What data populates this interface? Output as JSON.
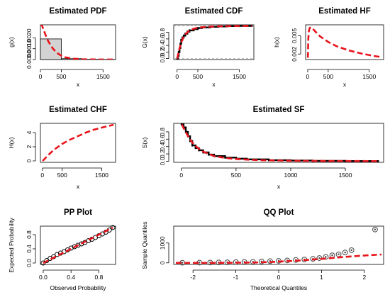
{
  "chart_data": [
    {
      "id": "pdf",
      "type": "bar",
      "title": "Estimated PDF",
      "xlabel": "x",
      "ylabel": "g(x)",
      "xlim": [
        0,
        1800
      ],
      "ylim": [
        0,
        0.0032
      ],
      "xticks": [
        "0",
        "500",
        "1500"
      ],
      "yticks": [
        "0.0000",
        "0.0010",
        "0.0020"
      ],
      "histogram": [
        {
          "x0": 0,
          "x1": 500,
          "value": 0.0019
        },
        {
          "x0": 500,
          "x1": 1000,
          "value": 8e-05
        },
        {
          "x0": 1000,
          "x1": 1500,
          "value": 2e-05
        },
        {
          "x0": 1500,
          "x1": 1800,
          "value": 1e-05
        }
      ],
      "fitted_curve": {
        "x": [
          5,
          20,
          40,
          60,
          80,
          100,
          150,
          200,
          300,
          400,
          500,
          600,
          800,
          1000,
          1200,
          1500,
          1800
        ],
        "y": [
          0.0031,
          0.0032,
          0.0031,
          0.0029,
          0.0027,
          0.0025,
          0.002,
          0.0016,
          0.001,
          0.0006,
          0.00035,
          0.0002,
          8e-05,
          3e-05,
          1e-05,
          4e-06,
          1e-06
        ]
      }
    },
    {
      "id": "cdf",
      "type": "line",
      "title": "Estimated CDF",
      "xlabel": "x",
      "ylabel": "G(x)",
      "xlim": [
        -80,
        1850
      ],
      "ylim": [
        -0.03,
        1.03
      ],
      "xticks": [
        "0",
        "500",
        "1500"
      ],
      "yticks": [
        "0.0",
        "0.2",
        "0.4",
        "0.6",
        "0.8"
      ],
      "empirical": {
        "x": [
          0,
          20,
          40,
          60,
          80,
          100,
          130,
          160,
          200,
          250,
          300,
          400,
          500,
          600,
          800,
          1000,
          1200,
          1500,
          1800
        ],
        "y": [
          0.0,
          0.08,
          0.2,
          0.32,
          0.45,
          0.57,
          0.64,
          0.7,
          0.76,
          0.82,
          0.86,
          0.9,
          0.93,
          0.95,
          0.97,
          0.98,
          0.99,
          0.995,
          1.0
        ]
      },
      "fitted": {
        "x": [
          5,
          20,
          40,
          60,
          80,
          100,
          150,
          200,
          300,
          400,
          500,
          700,
          1000,
          1400,
          1800
        ],
        "y": [
          0.0,
          0.1,
          0.21,
          0.31,
          0.41,
          0.49,
          0.64,
          0.74,
          0.86,
          0.91,
          0.94,
          0.97,
          0.985,
          0.993,
          0.997
        ]
      }
    },
    {
      "id": "hf",
      "type": "line",
      "title": "Estimated HF",
      "xlabel": "x",
      "ylabel": "h(x)",
      "xlim": [
        -50,
        1850
      ],
      "ylim": [
        0.0011,
        0.0068
      ],
      "xticks": [
        "0",
        "500",
        "1500"
      ],
      "yticks": [
        "0.002",
        "0.005"
      ],
      "fitted": {
        "x": [
          5,
          15,
          30,
          50,
          80,
          120,
          200,
          300,
          500,
          700,
          1000,
          1300,
          1600,
          1800
        ],
        "y": [
          0.0014,
          0.0045,
          0.0058,
          0.0063,
          0.0064,
          0.0062,
          0.0056,
          0.0049,
          0.004,
          0.0033,
          0.0026,
          0.0021,
          0.0017,
          0.0015
        ]
      }
    },
    {
      "id": "chf",
      "type": "line",
      "title": "Estimated CHF",
      "xlabel": "x",
      "ylabel": "H(x)",
      "xlim": [
        -50,
        1850
      ],
      "ylim": [
        -0.2,
        5.3
      ],
      "xticks": [
        "0",
        "500",
        "1500"
      ],
      "yticks": [
        "0",
        "2",
        "4"
      ],
      "fitted": {
        "x": [
          5,
          50,
          100,
          200,
          300,
          400,
          500,
          700,
          900,
          1100,
          1300,
          1500,
          1800
        ],
        "y": [
          0.0,
          0.25,
          0.55,
          1.1,
          1.6,
          2.0,
          2.4,
          3.0,
          3.5,
          4.0,
          4.4,
          4.7,
          5.1
        ]
      }
    },
    {
      "id": "sf",
      "type": "line",
      "title": "Estimated SF",
      "xlabel": "x",
      "ylabel": "S(x)",
      "xlim": [
        -70,
        1850
      ],
      "ylim": [
        -0.03,
        1.03
      ],
      "xticks": [
        "0",
        "500",
        "1000",
        "1500"
      ],
      "yticks": [
        "0.0",
        "0.2",
        "0.4",
        "0.6",
        "0.8"
      ],
      "empirical": {
        "x": [
          0,
          20,
          40,
          60,
          80,
          100,
          130,
          160,
          200,
          250,
          300,
          400,
          500,
          600,
          800,
          1000,
          1200,
          1500,
          1800
        ],
        "y": [
          1.0,
          0.92,
          0.8,
          0.68,
          0.55,
          0.43,
          0.36,
          0.3,
          0.24,
          0.18,
          0.14,
          0.1,
          0.07,
          0.05,
          0.03,
          0.02,
          0.01,
          0.005,
          0.0
        ]
      },
      "fitted": {
        "x": [
          5,
          20,
          40,
          60,
          80,
          100,
          150,
          200,
          300,
          400,
          500,
          700,
          1000,
          1400,
          1800
        ],
        "y": [
          1.0,
          0.9,
          0.79,
          0.69,
          0.59,
          0.51,
          0.36,
          0.26,
          0.14,
          0.09,
          0.06,
          0.03,
          0.015,
          0.007,
          0.003
        ]
      }
    },
    {
      "id": "pp",
      "type": "scatter",
      "title": "PP Plot",
      "xlabel": "Observed Probability",
      "ylabel": "Expected Probability",
      "xlim": [
        -0.04,
        1.04
      ],
      "ylim": [
        -0.04,
        1.04
      ],
      "xticks": [
        "0.0",
        "0.4",
        "0.8"
      ],
      "yticks": [
        "0.0",
        "0.4",
        "0.8"
      ],
      "points": {
        "x": [
          0.0,
          0.05,
          0.1,
          0.15,
          0.2,
          0.25,
          0.3,
          0.35,
          0.4,
          0.45,
          0.5,
          0.55,
          0.6,
          0.65,
          0.7,
          0.75,
          0.8,
          0.85,
          0.9,
          0.95,
          1.0
        ],
        "y": [
          0.0,
          0.07,
          0.13,
          0.18,
          0.24,
          0.28,
          0.32,
          0.37,
          0.42,
          0.46,
          0.5,
          0.54,
          0.58,
          0.63,
          0.67,
          0.72,
          0.77,
          0.82,
          0.87,
          0.93,
          1.0
        ]
      },
      "reference_line": {
        "x": [
          0,
          1
        ],
        "y": [
          0,
          1
        ]
      }
    },
    {
      "id": "qq",
      "type": "scatter",
      "title": "QQ Plot",
      "xlabel": "Theoretical Quantiles",
      "ylabel": "Sample Quantiles",
      "xlim": [
        -2.45,
        2.45
      ],
      "ylim": [
        -80,
        1850
      ],
      "xticks": [
        "-2",
        "-1",
        "0",
        "1",
        "2"
      ],
      "yticks": [
        "0",
        "1000"
      ],
      "points": {
        "x": [
          -2.25,
          -1.85,
          -1.6,
          -1.4,
          -1.2,
          -1.0,
          -0.8,
          -0.6,
          -0.4,
          -0.2,
          0.0,
          0.2,
          0.4,
          0.6,
          0.8,
          0.95,
          1.1,
          1.25,
          1.4,
          1.55,
          1.7,
          2.25
        ],
        "y": [
          5,
          10,
          15,
          20,
          25,
          35,
          45,
          55,
          70,
          85,
          100,
          120,
          145,
          170,
          200,
          240,
          300,
          380,
          430,
          520,
          640,
          1680
        ]
      },
      "reference_line": {
        "x": [
          -2.4,
          -1.5,
          -1.0,
          -0.5,
          0.0,
          0.5,
          1.0,
          1.5,
          2.0,
          2.4
        ],
        "y": [
          0,
          0,
          5,
          20,
          60,
          120,
          200,
          290,
          370,
          420
        ]
      }
    }
  ]
}
